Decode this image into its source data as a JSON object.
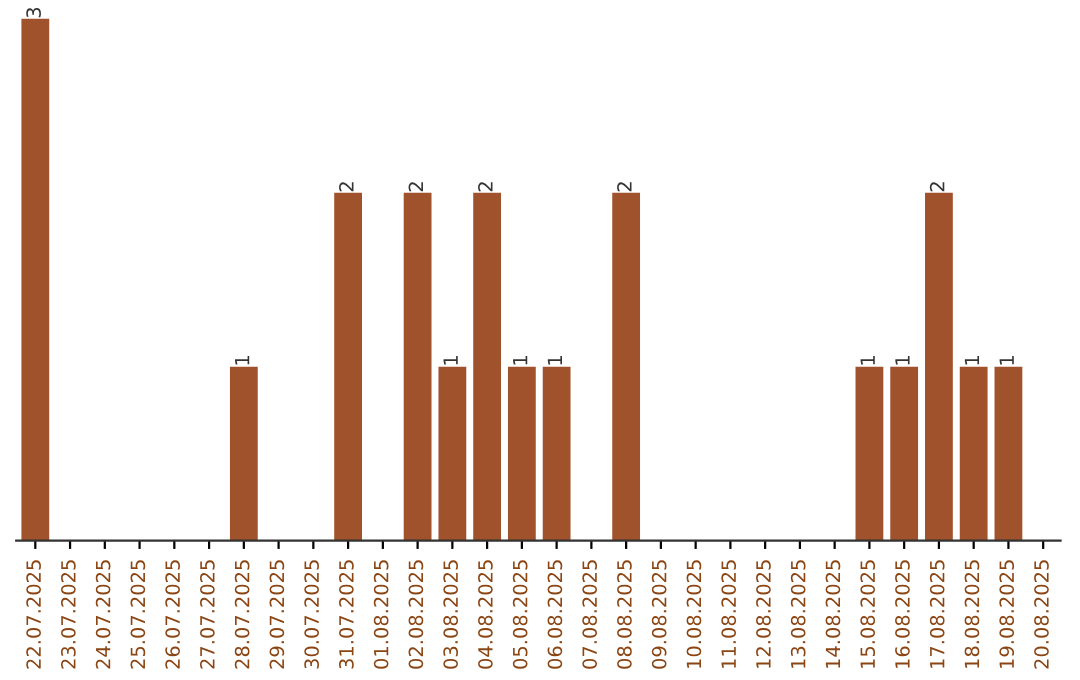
{
  "chart_data": {
    "type": "bar",
    "categories": [
      "22.07.2025",
      "23.07.2025",
      "24.07.2025",
      "25.07.2025",
      "26.07.2025",
      "27.07.2025",
      "28.07.2025",
      "29.07.2025",
      "30.07.2025",
      "31.07.2025",
      "01.08.2025",
      "02.08.2025",
      "03.08.2025",
      "04.08.2025",
      "05.08.2025",
      "06.08.2025",
      "07.08.2025",
      "08.08.2025",
      "09.08.2025",
      "10.08.2025",
      "11.08.2025",
      "12.08.2025",
      "13.08.2025",
      "14.08.2025",
      "15.08.2025",
      "16.08.2025",
      "17.08.2025",
      "18.08.2025",
      "19.08.2025",
      "20.08.2025"
    ],
    "values": [
      3,
      0,
      0,
      0,
      0,
      0,
      1,
      0,
      0,
      2,
      0,
      2,
      1,
      2,
      1,
      1,
      0,
      2,
      0,
      0,
      0,
      0,
      0,
      0,
      1,
      1,
      2,
      1,
      1,
      0
    ],
    "value_labels": [
      "3",
      null,
      null,
      null,
      null,
      null,
      "1",
      null,
      null,
      "2",
      null,
      "2",
      "1",
      "2",
      "1",
      "1",
      null,
      "2",
      null,
      null,
      null,
      null,
      null,
      null,
      "1",
      "1",
      "2",
      "1",
      "1",
      null
    ],
    "color": "#a0522d",
    "tick_labels": "x",
    "grid": false,
    "legend": false
  }
}
